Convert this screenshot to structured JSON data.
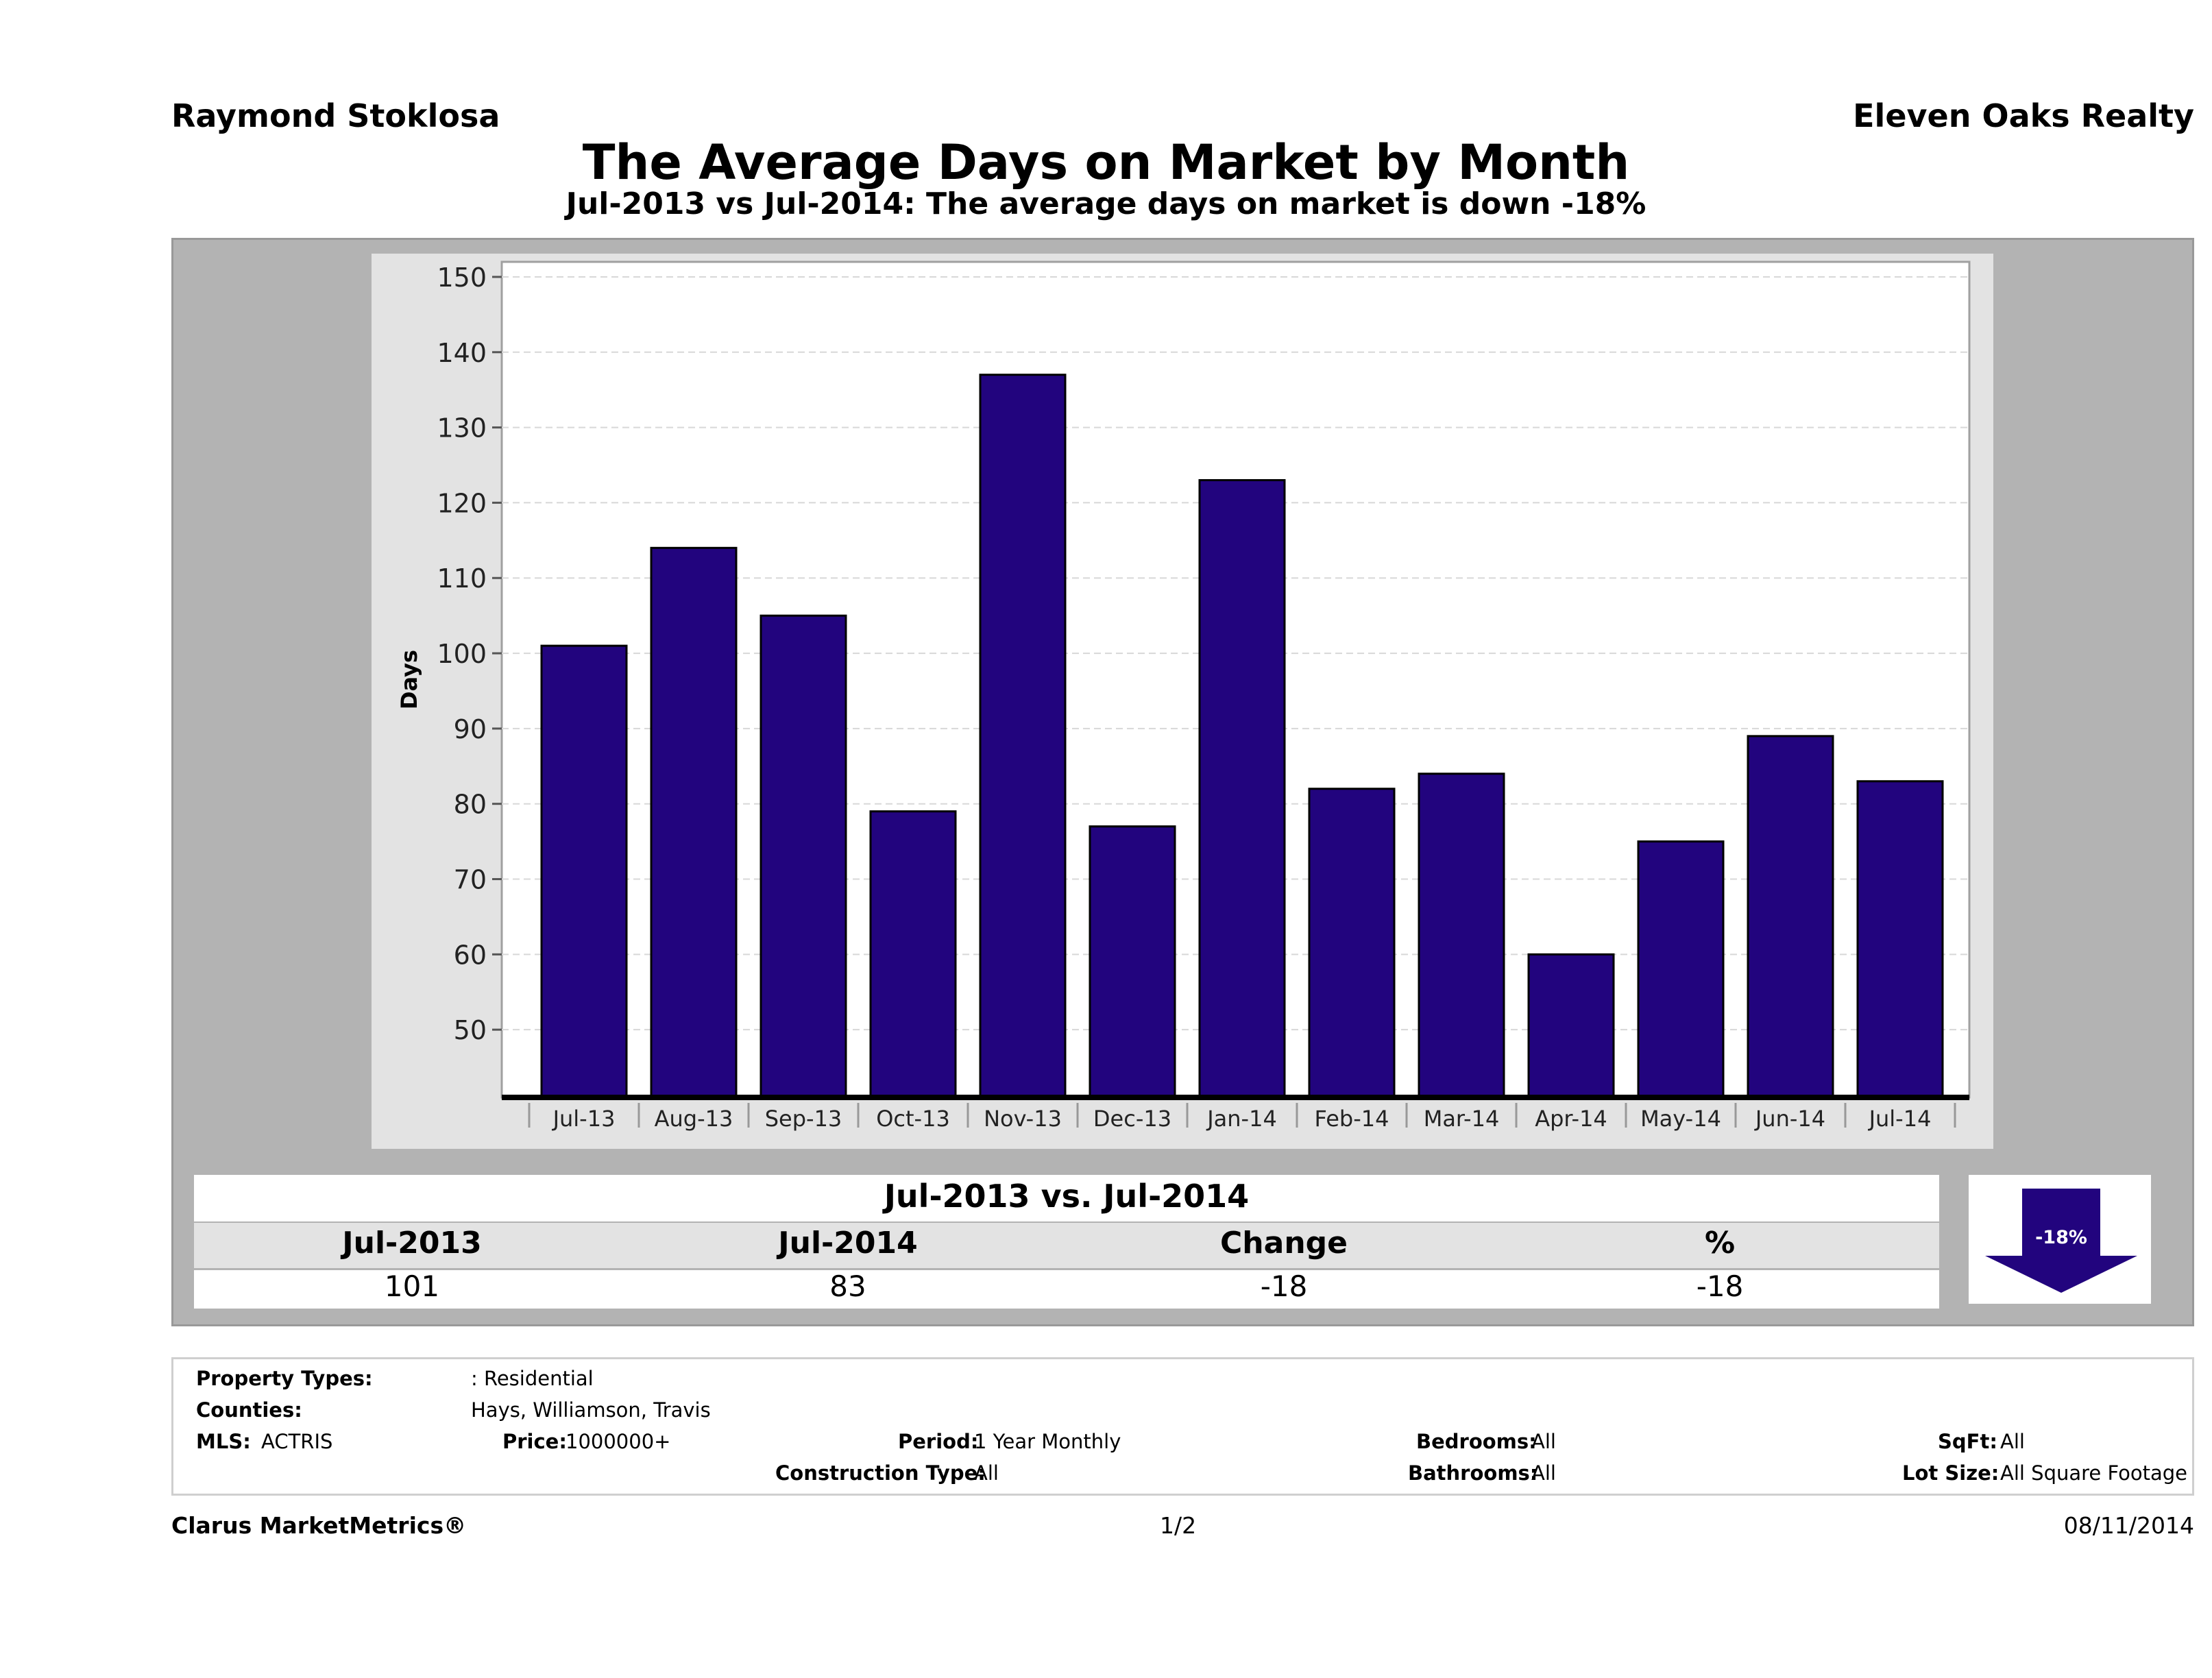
{
  "header": {
    "agent": "Raymond Stoklosa",
    "company": "Eleven Oaks Realty",
    "title": "The Average Days on Market by Month",
    "subtitle": "Jul-2013 vs Jul-2014: The average days on market is down -18%"
  },
  "chart_data": {
    "type": "bar",
    "categories": [
      "Jul-13",
      "Aug-13",
      "Sep-13",
      "Oct-13",
      "Nov-13",
      "Dec-13",
      "Jan-14",
      "Feb-14",
      "Mar-14",
      "Apr-14",
      "May-14",
      "Jun-14",
      "Jul-14"
    ],
    "values": [
      101,
      114,
      105,
      79,
      137,
      77,
      123,
      82,
      84,
      60,
      75,
      89,
      83
    ],
    "xlabel": "",
    "ylabel": "Days",
    "ylim": [
      41,
      152
    ],
    "yticks": [
      50,
      60,
      70,
      80,
      90,
      100,
      110,
      120,
      130,
      140,
      150
    ],
    "grid": true,
    "bar_color": "#22047e"
  },
  "summary": {
    "header": "Jul-2013 vs. Jul-2014",
    "labels": [
      "Jul-2013",
      "Jul-2014",
      "Change",
      "%"
    ],
    "values": [
      "101",
      "83",
      "-18",
      "-18"
    ],
    "badge": "-18%",
    "badge_color": "#22047e",
    "trend": "down"
  },
  "criteria": {
    "property_types_label": "Property Types:",
    "property_types_value": ": Residential",
    "counties_label": "Counties:",
    "counties_value": "Hays, Williamson, Travis",
    "mls_label": "MLS:",
    "mls_value": "ACTRIS",
    "price_label": "Price:",
    "price_value": "1000000+",
    "period_label": "Period:",
    "period_value": "1 Year Monthly",
    "construction_label": "Construction Type:",
    "construction_value": "All",
    "bedrooms_label": "Bedrooms:",
    "bedrooms_value": "All",
    "bathrooms_label": "Bathrooms:",
    "bathrooms_value": "All",
    "sqft_label": "SqFt:",
    "sqft_value": "All",
    "lotsize_label": "Lot Size:",
    "lotsize_value": "All Square Footage"
  },
  "footer": {
    "brand": "Clarus MarketMetrics®",
    "page": "1/2",
    "date": "08/11/2014"
  }
}
